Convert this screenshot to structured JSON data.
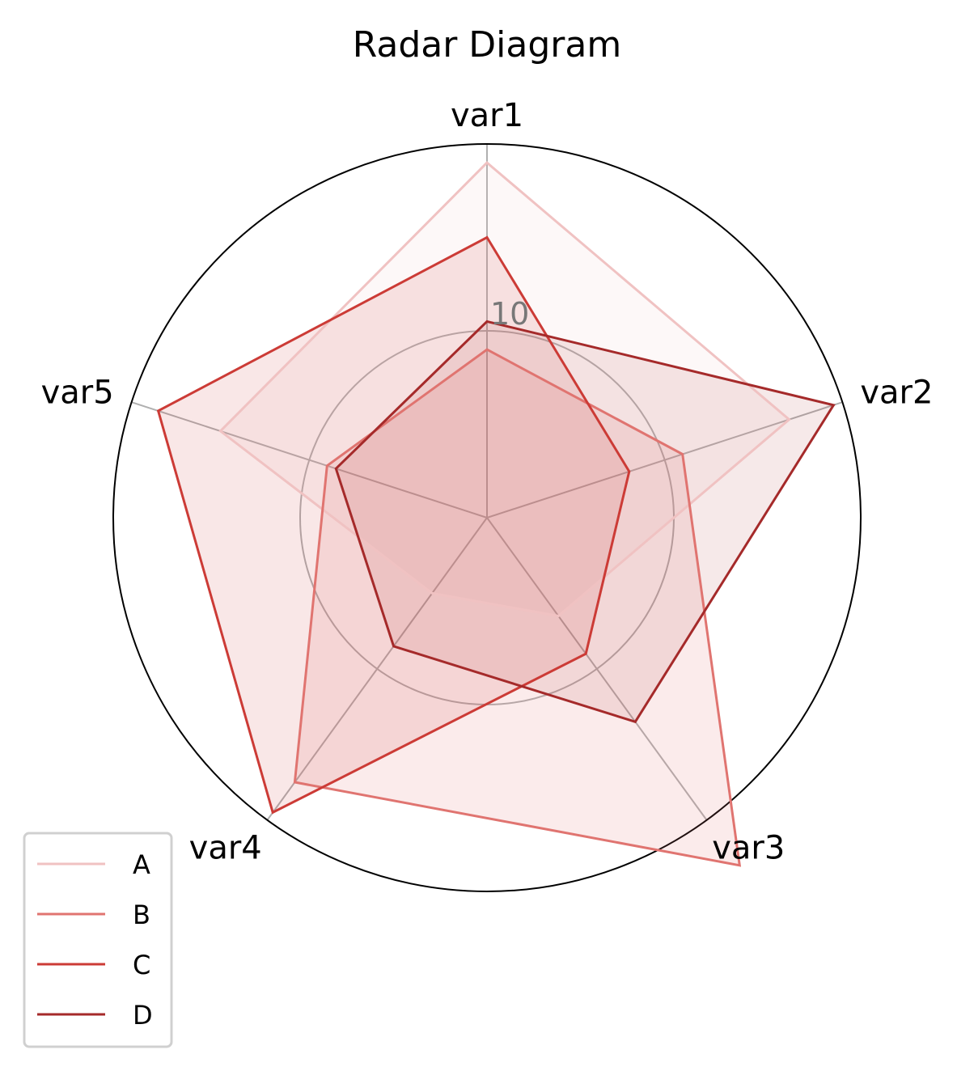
{
  "chart_data": {
    "type": "radar",
    "title": "Radar Diagram",
    "categories": [
      "var1",
      "var2",
      "var3",
      "var4",
      "var5"
    ],
    "rlim": [
      -10,
      30
    ],
    "rticks": [
      10
    ],
    "rtick_labels": [
      "10"
    ],
    "grid": true,
    "legend_position": "bottom-left",
    "series": [
      {
        "name": "A",
        "values": [
          28,
          24,
          3,
          0,
          20
        ],
        "color": "#f0c2c2",
        "fill_opacity": 0.12
      },
      {
        "name": "B",
        "values": [
          8,
          12,
          36,
          25,
          8
        ],
        "color": "#e07470",
        "fill_opacity": 0.14
      },
      {
        "name": "C",
        "values": [
          20,
          6,
          8,
          29,
          27
        ],
        "color": "#cc3b36",
        "fill_opacity": 0.12
      },
      {
        "name": "D",
        "values": [
          11,
          29,
          17,
          7,
          7
        ],
        "color": "#a52a2a",
        "fill_opacity": 0.1
      }
    ]
  }
}
